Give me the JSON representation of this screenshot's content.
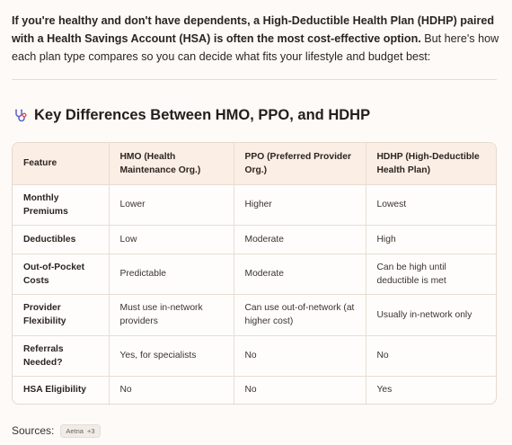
{
  "intro": {
    "bold": "If you're healthy and don't have dependents, a High-Deductible Health Plan (HDHP) paired with a Health Savings Account (HSA) is often the most cost-effective option.",
    "rest": " But here's how each plan type compares so you can decide what fits your lifestyle and budget best:"
  },
  "section": {
    "icon": "stethoscope-icon",
    "title": "Key Differences Between HMO, PPO, and HDHP"
  },
  "table": {
    "headers": [
      "Feature",
      "HMO (Health Maintenance Org.)",
      "PPO (Preferred Provider Org.)",
      "HDHP (High-Deductible Health Plan)"
    ],
    "rows": [
      [
        "Monthly Premiums",
        "Lower",
        "Higher",
        "Lowest"
      ],
      [
        "Deductibles",
        "Low",
        "Moderate",
        "High"
      ],
      [
        "Out-of-Pocket Costs",
        "Predictable",
        "Moderate",
        "Can be high until deductible is met"
      ],
      [
        "Provider Flexibility",
        "Must use in-network providers",
        "Can use out-of-network (at higher cost)",
        "Usually in-network only"
      ],
      [
        "Referrals Needed?",
        "Yes, for specialists",
        "No",
        "No"
      ],
      [
        "HSA Eligibility",
        "No",
        "No",
        "Yes"
      ]
    ]
  },
  "sources": {
    "label": "Sources:",
    "chip_name": "Aetna",
    "chip_count": "+3"
  },
  "colors": {
    "header_bg": "#fbeee4",
    "icon_color": "#5b5fc7"
  }
}
